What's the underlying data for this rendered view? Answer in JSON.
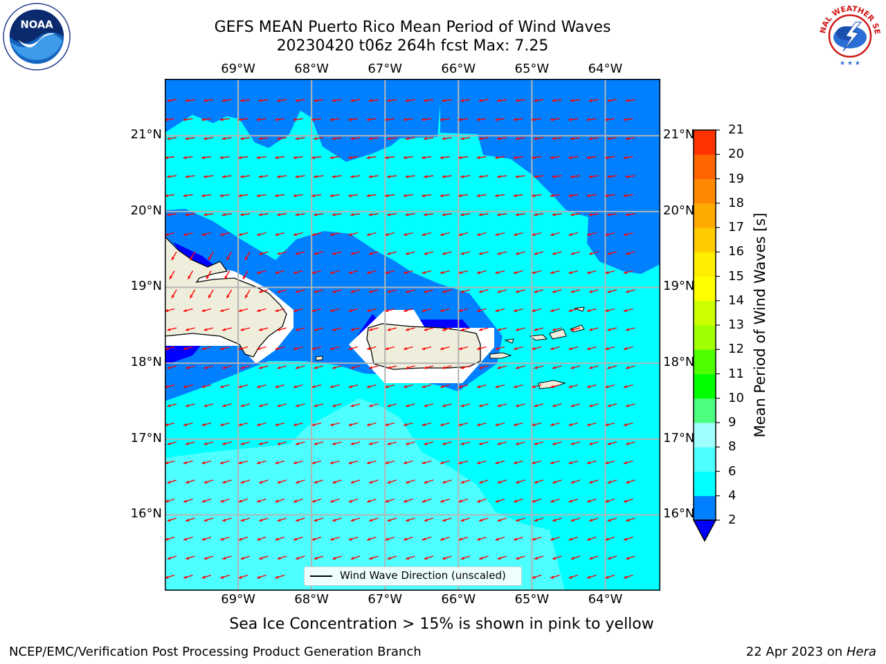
{
  "header": {
    "title_line1": "GEFS MEAN Puerto Rico Mean Period of Wind Waves",
    "title_line2": "20230420 t06z 264h fcst   Max: 7.25"
  },
  "logos": {
    "noaa": {
      "text": "NOAA",
      "ring_text": "NATIONAL OCEANIC AND ATMOSPHERIC ADMINISTRATION · U.S. DEPARTMENT OF COMMERCE"
    },
    "nws": {
      "text": "NATIONAL WEATHER SERVICE"
    }
  },
  "map": {
    "extent": {
      "lon": [
        -70.0,
        -63.25
      ],
      "lat": [
        15.0,
        21.75
      ]
    },
    "lon_ticks": [
      {
        "value": -69,
        "label": "69°W"
      },
      {
        "value": -68,
        "label": "68°W"
      },
      {
        "value": -67,
        "label": "67°W"
      },
      {
        "value": -66,
        "label": "66°W"
      },
      {
        "value": -65,
        "label": "65°W"
      },
      {
        "value": -64,
        "label": "64°W"
      }
    ],
    "lat_ticks": [
      {
        "value": 21,
        "label": "21°N"
      },
      {
        "value": 20,
        "label": "20°N"
      },
      {
        "value": 19,
        "label": "19°N"
      },
      {
        "value": 18,
        "label": "18°N"
      },
      {
        "value": 17,
        "label": "17°N"
      },
      {
        "value": 16,
        "label": "16°N"
      }
    ],
    "field_colors": {
      "band_2_4": "#0080ff",
      "band_4_6": "#00ffff",
      "band_6_8": "#4dffff",
      "below_2": "#0000ff",
      "land": "#efeedc"
    },
    "arrow_color": "#ff0000",
    "legend_label": "Wind Wave Direction (unscaled)"
  },
  "colorbar": {
    "title": "Mean Period of Wind Waves [s]",
    "levels": [
      "2",
      "4",
      "6",
      "8",
      "9",
      "10",
      "11",
      "12",
      "13",
      "14",
      "15",
      "16",
      "17",
      "18",
      "19",
      "20",
      "21"
    ],
    "colors": [
      "#0080ff",
      "#00ffff",
      "#4dffff",
      "#a0ffff",
      "#4dff80",
      "#00ff00",
      "#4dff00",
      "#a0ff00",
      "#ccff00",
      "#ffff00",
      "#ffee00",
      "#ffcc00",
      "#ffaa00",
      "#ff8800",
      "#ff6600",
      "#ff3300",
      "#ff0000"
    ],
    "under_color": "#0000ff"
  },
  "footer": {
    "note": "Sea Ice Concentration > 15% is shown in pink to yellow",
    "credit_left": "NCEP/EMC/Verification Post Processing Product Generation Branch",
    "credit_date": "22 Apr 2023 on",
    "credit_host": "Hera"
  }
}
